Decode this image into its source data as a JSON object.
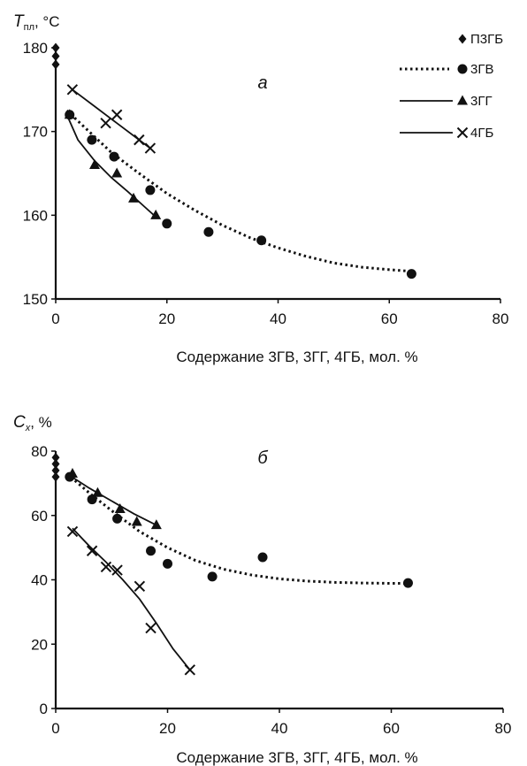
{
  "chart_data": [
    {
      "type": "scatter",
      "panel_label": "а",
      "ylabel_main": "T",
      "ylabel_sub": "пл",
      "ylabel_unit": ", °C",
      "xlabel": "Содержание 3ГВ, 3ГГ, 4ГБ, мол. %",
      "xlim": [
        0,
        80
      ],
      "ylim": [
        150,
        180
      ],
      "xticks": [
        "0",
        "20",
        "40",
        "60",
        "80"
      ],
      "yticks": [
        "150",
        "160",
        "170",
        "180"
      ],
      "grid": false,
      "legend_position": "top-right",
      "series": [
        {
          "name": "П3ГБ",
          "marker": "diamond",
          "line": "none",
          "points": [
            [
              0,
              180
            ],
            [
              0,
              179
            ],
            [
              0,
              178
            ]
          ]
        },
        {
          "name": "3ГВ",
          "marker": "circle",
          "line": "dotted",
          "points": [
            [
              2.5,
              172
            ],
            [
              6.5,
              169
            ],
            [
              10.5,
              167
            ],
            [
              17,
              163
            ],
            [
              20,
              159
            ],
            [
              27.5,
              158
            ],
            [
              37,
              157
            ],
            [
              64,
              153
            ]
          ],
          "trend": [
            [
              2,
              172.5
            ],
            [
              6,
              170
            ],
            [
              10,
              167.5
            ],
            [
              15,
              165
            ],
            [
              20,
              162.6
            ],
            [
              25,
              160.6
            ],
            [
              30,
              158.8
            ],
            [
              35,
              157.3
            ],
            [
              40,
              156.1
            ],
            [
              45,
              155.1
            ],
            [
              50,
              154.3
            ],
            [
              55,
              153.8
            ],
            [
              60,
              153.5
            ],
            [
              64,
              153.3
            ]
          ]
        },
        {
          "name": "3ГГ",
          "marker": "triangle",
          "line": "solid",
          "points": [
            [
              2.5,
              172
            ],
            [
              7,
              166
            ],
            [
              11,
              165
            ],
            [
              14,
              162
            ],
            [
              18,
              160
            ]
          ],
          "trend": [
            [
              2,
              172
            ],
            [
              4,
              169
            ],
            [
              7,
              166.5
            ],
            [
              10,
              164.5
            ],
            [
              13,
              162.8
            ],
            [
              16,
              161
            ],
            [
              18,
              159.8
            ]
          ]
        },
        {
          "name": "4ГБ",
          "marker": "x",
          "line": "solid",
          "points": [
            [
              3,
              175
            ],
            [
              9,
              171
            ],
            [
              11,
              172
            ],
            [
              15,
              169
            ],
            [
              17,
              168
            ]
          ],
          "trend": [
            [
              3,
              175
            ],
            [
              7,
              173
            ],
            [
              11,
              171
            ],
            [
              15,
              169
            ],
            [
              17,
              168
            ]
          ]
        }
      ]
    },
    {
      "type": "scatter",
      "panel_label": "б",
      "ylabel_main": "C",
      "ylabel_sub": "x",
      "ylabel_unit": ", %",
      "xlabel": "Содержание 3ГВ, 3ГГ, 4ГБ, мол. %",
      "xlim": [
        0,
        80
      ],
      "ylim": [
        0,
        80
      ],
      "xticks": [
        "0",
        "20",
        "40",
        "60",
        "80"
      ],
      "yticks": [
        "0",
        "20",
        "40",
        "60",
        "80"
      ],
      "grid": false,
      "series": [
        {
          "name": "П3ГБ",
          "marker": "diamond",
          "line": "none",
          "points": [
            [
              0,
              78
            ],
            [
              0,
              76
            ],
            [
              0,
              74
            ],
            [
              0,
              72
            ]
          ]
        },
        {
          "name": "3ГВ",
          "marker": "circle",
          "line": "dotted",
          "points": [
            [
              2.5,
              72
            ],
            [
              6.5,
              65
            ],
            [
              11,
              59
            ],
            [
              17,
              49
            ],
            [
              20,
              45
            ],
            [
              28,
              41
            ],
            [
              37,
              47
            ],
            [
              63,
              39
            ]
          ],
          "trend": [
            [
              2,
              73
            ],
            [
              6,
              67
            ],
            [
              10,
              61.5
            ],
            [
              15,
              55
            ],
            [
              20,
              50
            ],
            [
              25,
              46
            ],
            [
              30,
              43.3
            ],
            [
              35,
              41.5
            ],
            [
              40,
              40.3
            ],
            [
              45,
              39.6
            ],
            [
              50,
              39.2
            ],
            [
              55,
              39
            ],
            [
              60,
              38.9
            ],
            [
              63,
              38.9
            ]
          ]
        },
        {
          "name": "3ГГ",
          "marker": "triangle",
          "line": "solid",
          "points": [
            [
              3,
              73
            ],
            [
              7.5,
              67
            ],
            [
              11.5,
              62
            ],
            [
              14.5,
              58
            ],
            [
              18,
              57
            ]
          ],
          "trend": [
            [
              2,
              73
            ],
            [
              6,
              68.5
            ],
            [
              10,
              64.5
            ],
            [
              14,
              60.5
            ],
            [
              18,
              57
            ]
          ]
        },
        {
          "name": "4ГБ",
          "marker": "x",
          "line": "solid",
          "points": [
            [
              3,
              55
            ],
            [
              6.5,
              49
            ],
            [
              9,
              44
            ],
            [
              11,
              43
            ],
            [
              15,
              38
            ],
            [
              17,
              25
            ],
            [
              24,
              12
            ]
          ],
          "trend": [
            [
              3,
              56
            ],
            [
              6,
              50.5
            ],
            [
              9,
              45.5
            ],
            [
              12,
              40
            ],
            [
              15,
              34
            ],
            [
              18,
              26.5
            ],
            [
              21,
              18.5
            ],
            [
              24,
              12
            ]
          ]
        }
      ]
    }
  ]
}
